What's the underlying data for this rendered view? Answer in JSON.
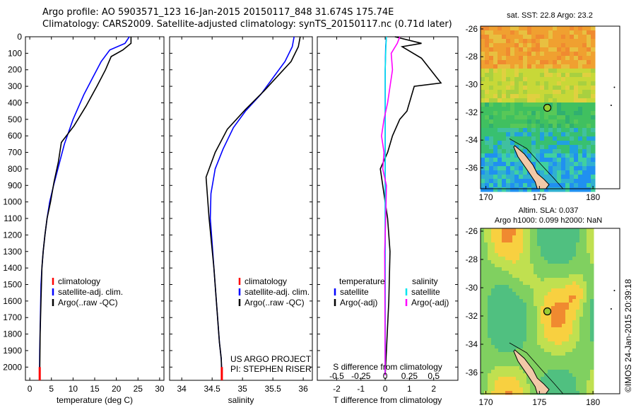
{
  "header": {
    "line1": "Argo profile: AO 5903571_123 16-Jan-2015 20150117_848 31.674S 175.74E",
    "line2": "Climatology: CARS2009. Satellite-adjusted climatology: synTS_20150117.nc (0.71d later)"
  },
  "colors": {
    "climatology": "#ff0000",
    "satellite": "#0000ff",
    "argo": "#000000",
    "s_satellite": "#00e5ee",
    "s_argo": "#ff00ff"
  },
  "chart_data": [
    {
      "type": "line",
      "id": "temperature",
      "xlabel": "temperature (deg C)",
      "ylabel": "",
      "xlim": [
        -1,
        31
      ],
      "ylim": [
        2080,
        0
      ],
      "xticks": [
        0,
        5,
        10,
        15,
        20,
        25,
        30
      ],
      "yticks": [
        0,
        100,
        200,
        300,
        400,
        500,
        600,
        700,
        800,
        900,
        1000,
        1100,
        1200,
        1300,
        1400,
        1500,
        1600,
        1700,
        1800,
        1900,
        2000
      ],
      "legend": {
        "placement": "bottom-left",
        "entries": [
          "climatology",
          "satellite-adj. clim.",
          "Argo(..raw -QC)"
        ]
      },
      "series": [
        {
          "name": "satellite-adj. clim.",
          "color": "#0000ff",
          "x": [
            23.0,
            22.0,
            18.5,
            16.5,
            14.5,
            12.5,
            10.0,
            8.0,
            6.5,
            5.5,
            4.6,
            4.0,
            3.5,
            3.1,
            2.8,
            2.6,
            2.45,
            2.3,
            2.25
          ],
          "y": [
            0,
            40,
            80,
            150,
            250,
            350,
            500,
            650,
            800,
            900,
            1000,
            1100,
            1200,
            1300,
            1400,
            1500,
            1700,
            1900,
            2050
          ]
        },
        {
          "name": "Argo(..raw -QC)",
          "color": "#000000",
          "x": [
            23.4,
            23.4,
            21.5,
            18.8,
            17.5,
            15.5,
            13.0,
            10.2,
            7.3,
            6.6,
            5.6,
            4.8,
            4.0,
            3.5,
            3.1,
            2.8,
            2.6,
            2.4,
            2.3
          ],
          "y": [
            0,
            40,
            80,
            120,
            200,
            300,
            420,
            540,
            640,
            760,
            880,
            1000,
            1100,
            1200,
            1300,
            1400,
            1600,
            1800,
            2050
          ]
        },
        {
          "name": "climatology",
          "color": "#ff0000",
          "x": [
            2.3,
            2.3
          ],
          "y": [
            2000,
            2080
          ]
        }
      ]
    },
    {
      "type": "line",
      "id": "salinity",
      "xlabel": "salinity",
      "ylabel": "",
      "xlim": [
        33.8,
        36.15
      ],
      "ylim": [
        2080,
        0
      ],
      "xticks": [
        34,
        34.5,
        35,
        35.5,
        36
      ],
      "legend": {
        "placement": "bottom-left",
        "entries": [
          "climatology",
          "satellite-adj. clim.",
          "Argo(..raw -QC)"
        ]
      },
      "notes": [
        "US ARGO PROJECT",
        "PI: STEPHEN RISER"
      ],
      "series": [
        {
          "name": "satellite-adj. clim.",
          "color": "#0000ff",
          "x": [
            35.85,
            35.82,
            35.7,
            35.5,
            35.3,
            35.05,
            34.85,
            34.68,
            34.55,
            34.48,
            34.47,
            34.5,
            34.53,
            34.56,
            34.59,
            34.62,
            34.65,
            34.66
          ],
          "y": [
            0,
            60,
            150,
            250,
            350,
            450,
            550,
            680,
            800,
            950,
            1100,
            1250,
            1400,
            1550,
            1700,
            1850,
            1950,
            2050
          ]
        },
        {
          "name": "Argo(..raw -QC)",
          "color": "#000000",
          "x": [
            35.95,
            35.92,
            35.8,
            35.6,
            35.35,
            35.05,
            34.75,
            34.55,
            34.4,
            34.42,
            34.45,
            34.49,
            34.53,
            34.56,
            34.59,
            34.62,
            34.65,
            34.66
          ],
          "y": [
            0,
            60,
            150,
            230,
            330,
            440,
            560,
            700,
            850,
            950,
            1100,
            1250,
            1400,
            1550,
            1700,
            1850,
            1950,
            2050
          ]
        },
        {
          "name": "climatology",
          "color": "#ff0000",
          "x": [
            34.66,
            34.66
          ],
          "y": [
            2000,
            2080
          ]
        }
      ]
    },
    {
      "type": "line",
      "id": "difference",
      "xlabel": "T difference from climatology",
      "xlabel_top": "S difference from climatology",
      "ylabel": "",
      "xlim": [
        -2.8,
        3.0
      ],
      "ylim": [
        2080,
        0
      ],
      "xticks_t": [
        -2,
        -1,
        0,
        1,
        2
      ],
      "xticks_s": [
        -0.5,
        -0.25,
        0,
        0.25,
        0.5
      ],
      "legend": {
        "placement": "bottom",
        "temperature_title": "temperature",
        "salinity_title": "salinity",
        "temperature_entries": [
          "satellite",
          "Argo(-adj)"
        ],
        "salinity_entries": [
          "satellite",
          "Argo(-adj)"
        ]
      },
      "series": [
        {
          "name": "temperature satellite",
          "color": "#0000ff",
          "x": [
            0.05,
            0.02,
            0.0,
            0.0,
            0.0
          ],
          "y": [
            0,
            60,
            200,
            1000,
            2050
          ]
        },
        {
          "name": "temperature Argo(-adj)",
          "color": "#000000",
          "x": [
            0.4,
            1.5,
            0.7,
            1.5,
            2.3,
            1.2,
            0.9,
            0.6,
            0.3,
            0.1,
            -0.2,
            -0.1,
            0.1,
            0.2,
            0.15,
            0.0
          ],
          "y": [
            0,
            40,
            60,
            130,
            280,
            300,
            450,
            500,
            600,
            700,
            800,
            900,
            1100,
            1300,
            1600,
            2050
          ]
        },
        {
          "name": "salinity satellite",
          "color": "#00e5ee",
          "x": [
            0.05,
            0.03,
            0.0,
            0.0,
            0.0
          ],
          "y": [
            0,
            60,
            200,
            1000,
            2050
          ]
        },
        {
          "name": "salinity Argo(-adj)",
          "color": "#ff00ff",
          "x": [
            0.6,
            0.5,
            0.25,
            0.3,
            0.1,
            -0.05,
            -0.15,
            -0.05,
            -0.1,
            0.05,
            0.02,
            -0.02,
            0.0
          ],
          "y": [
            0,
            40,
            100,
            200,
            400,
            500,
            600,
            700,
            800,
            900,
            1100,
            1300,
            2050
          ]
        }
      ]
    },
    {
      "type": "heatmap",
      "id": "sst_map",
      "title": "sat. SST: 22.8  Argo: 23.2",
      "xlim": [
        169.5,
        182.5
      ],
      "ylim": [
        -37.5,
        -25.8
      ],
      "xticks": [
        170,
        175,
        180
      ],
      "yticks": [
        -26,
        -28,
        -30,
        -32,
        -34,
        -36
      ],
      "marker": {
        "lon": 175.74,
        "lat": -31.674
      }
    },
    {
      "type": "heatmap",
      "id": "sla_map",
      "title": "Altim. SLA: 0.037",
      "subtitle": "Argo h1000: 0.099  h2000: NaN",
      "xlim": [
        169.5,
        182.5
      ],
      "ylim": [
        -37.5,
        -25.8
      ],
      "xticks": [
        170,
        175,
        180
      ],
      "yticks": [
        -26,
        -28,
        -30,
        -32,
        -34,
        -36
      ],
      "marker": {
        "lon": 175.74,
        "lat": -31.674
      }
    }
  ],
  "footer": {
    "project": "US ARGO PROJECT",
    "pi": "PI: STEPHEN RISER",
    "credit": "©IMOS 24-Jan-2015 20:39:18"
  }
}
